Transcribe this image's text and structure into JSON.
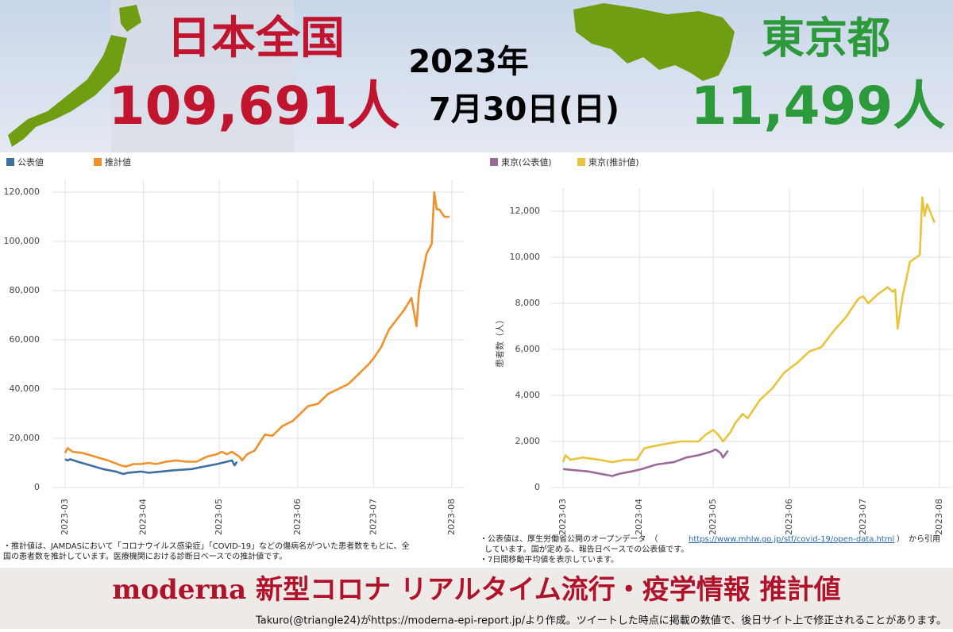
{
  "header": {
    "japan_title": "日本全国",
    "japan_count": "109,691人",
    "year": "2023年",
    "date": "7月30日(日)",
    "tokyo_title": "東京都",
    "tokyo_count": "11,499人"
  },
  "chart_data": [
    {
      "type": "line",
      "grid": true,
      "xlim": [
        -5,
        158
      ],
      "xticks": [
        {
          "value": 0,
          "label": "2023-03"
        },
        {
          "value": 31,
          "label": "2023-04"
        },
        {
          "value": 61,
          "label": "2023-05"
        },
        {
          "value": 92,
          "label": "2023-06"
        },
        {
          "value": 122,
          "label": "2023-07"
        },
        {
          "value": 153,
          "label": "2023-08"
        }
      ],
      "ylim": [
        0,
        125000
      ],
      "yticks": [
        0,
        {
          "value": 20000,
          "label": "20,000"
        },
        {
          "value": 40000,
          "label": "40,000"
        },
        {
          "value": 60000,
          "label": "60,000"
        },
        {
          "value": 80000,
          "label": "80,000"
        },
        {
          "value": 100000,
          "label": "100,000"
        },
        {
          "value": 120000,
          "label": "120,000"
        }
      ],
      "series": [
        {
          "name": "公表値",
          "color": "#3d6fa0",
          "x": [
            0,
            1,
            2,
            5,
            10,
            15,
            20,
            23,
            25,
            30,
            33,
            38,
            43,
            50,
            55,
            60,
            62,
            64,
            66,
            67,
            68
          ],
          "values": [
            11500,
            11000,
            11500,
            10500,
            9000,
            7500,
            6500,
            5500,
            6000,
            6500,
            6000,
            6500,
            7000,
            7500,
            8500,
            9500,
            10000,
            10500,
            11000,
            9000,
            10500
          ]
        },
        {
          "name": "推計値",
          "color": "#f0902a",
          "x": [
            0,
            1,
            3,
            7,
            12,
            17,
            22,
            24,
            27,
            30,
            33,
            36,
            40,
            44,
            48,
            52,
            56,
            60,
            62,
            64,
            66,
            69,
            70,
            72,
            75,
            79,
            82,
            86,
            90,
            96,
            100,
            104,
            108,
            112,
            116,
            120,
            122,
            125,
            128,
            131,
            134,
            137,
            139,
            140,
            143,
            145,
            146,
            147,
            148,
            150,
            152
          ],
          "values": [
            14000,
            16000,
            14500,
            14000,
            12500,
            11000,
            9000,
            8500,
            9500,
            9500,
            10000,
            9500,
            10500,
            11000,
            10500,
            10500,
            12500,
            13500,
            14500,
            13500,
            14500,
            12500,
            11000,
            13500,
            15000,
            21500,
            21000,
            25000,
            27000,
            33000,
            34000,
            38000,
            40000,
            42000,
            46000,
            50000,
            52500,
            57000,
            64000,
            68000,
            72000,
            77000,
            65500,
            80000,
            95000,
            99000,
            120000,
            113000,
            113000,
            110000,
            110000
          ]
        }
      ],
      "notes": [
        "・推計値は、JAMDASにおいて「コロナウイルス感染症」「COVID-19」などの傷病名がついた患者数をもとに、全",
        "国の患者数を推計しています。医療機関における診断日ベースでの推計値です。"
      ]
    },
    {
      "type": "line",
      "grid": true,
      "ylabel": "患者数（人）",
      "xlim": [
        -5,
        158
      ],
      "xticks": [
        {
          "value": 0,
          "label": "2023-03"
        },
        {
          "value": 31,
          "label": "2023-04"
        },
        {
          "value": 61,
          "label": "2023-05"
        },
        {
          "value": 92,
          "label": "2023-06"
        },
        {
          "value": 122,
          "label": "2023-07"
        },
        {
          "value": 153,
          "label": "2023-08"
        }
      ],
      "ylim": [
        0,
        13000
      ],
      "yticks": [
        0,
        {
          "value": 2000,
          "label": "2,000"
        },
        {
          "value": 4000,
          "label": "4,000"
        },
        {
          "value": 6000,
          "label": "6,000"
        },
        {
          "value": 8000,
          "label": "8,000"
        },
        {
          "value": 10000,
          "label": "10,000"
        },
        {
          "value": 12000,
          "label": "12,000"
        }
      ],
      "series": [
        {
          "name": "東京(公表値)",
          "color": "#9c6a9a",
          "x": [
            0,
            5,
            10,
            15,
            20,
            23,
            28,
            32,
            38,
            45,
            50,
            55,
            60,
            62,
            64,
            65,
            67
          ],
          "values": [
            800,
            750,
            700,
            600,
            500,
            600,
            700,
            800,
            1000,
            1100,
            1300,
            1400,
            1550,
            1650,
            1500,
            1300,
            1600
          ]
        },
        {
          "name": "東京(推計値)",
          "color": "#e8c43a",
          "x": [
            0,
            1,
            3,
            8,
            15,
            20,
            25,
            30,
            33,
            37,
            42,
            48,
            55,
            58,
            61,
            63,
            65,
            68,
            70,
            73,
            75,
            80,
            85,
            90,
            95,
            100,
            105,
            110,
            115,
            120,
            122,
            124,
            128,
            132,
            134,
            135,
            136,
            138,
            141,
            145,
            146,
            147,
            148,
            151
          ],
          "values": [
            1100,
            1400,
            1200,
            1300,
            1200,
            1100,
            1200,
            1200,
            1700,
            1800,
            1900,
            2000,
            2000,
            2300,
            2500,
            2300,
            2000,
            2400,
            2800,
            3200,
            3000,
            3800,
            4300,
            5000,
            5400,
            5900,
            6100,
            6800,
            7400,
            8200,
            8300,
            8000,
            8400,
            8700,
            8500,
            8600,
            6900,
            8300,
            9800,
            10100,
            12600,
            11800,
            12300,
            11500
          ]
        }
      ],
      "notes": [
        "・公表値は、厚生労働省公開のオープンデータ　（",
        "https://www.mhlw.go.jp/stf/covid-19/open-data.html",
        "）　から引用",
        "しています。国が定める、報告日ベースでの公表値です。",
        "・7日間移動平均値を表示しています。"
      ]
    }
  ],
  "banner": {
    "title": "moderna 新型コロナ リアルタイム流行・疫学情報 推計値",
    "credit": "Takuro(@triangle24)がhttps://moderna-epi-report.jp/より作成。ツイートした時点に掲載の数値で、後日サイト上で修正されることがあります。"
  }
}
